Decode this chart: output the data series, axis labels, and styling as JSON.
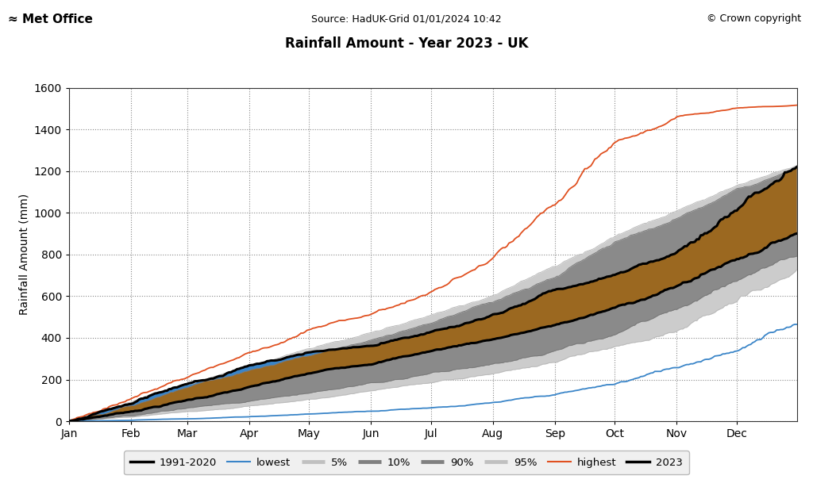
{
  "title": "Rainfall Amount - Year 2023 - UK",
  "source_text": "Source: HadUK-Grid 01/01/2024 10:42",
  "copyright_text": "© Crown copyright",
  "ylabel": "Rainfall Amount (mm)",
  "ylim": [
    0,
    1600
  ],
  "yticks": [
    0,
    200,
    400,
    600,
    800,
    1000,
    1200,
    1400,
    1600
  ],
  "months": [
    "Jan",
    "Feb",
    "Mar",
    "Apr",
    "May",
    "Jun",
    "Jul",
    "Aug",
    "Sep",
    "Oct",
    "Nov",
    "Dec"
  ],
  "month_x": [
    1,
    32,
    60,
    91,
    121,
    152,
    182,
    213,
    244,
    274,
    305,
    335,
    365
  ],
  "mean_checkpoints": [
    0,
    50,
    105,
    165,
    225,
    280,
    340,
    400,
    465,
    545,
    650,
    790,
    920
  ],
  "lowest_checkpoints": [
    0,
    5,
    12,
    22,
    35,
    50,
    68,
    90,
    120,
    165,
    240,
    340,
    450
  ],
  "highest_checkpoints": [
    0,
    110,
    220,
    340,
    450,
    525,
    630,
    780,
    1000,
    1250,
    1360,
    1415,
    1430
  ],
  "pct5_checkpoints": [
    0,
    18,
    40,
    68,
    100,
    135,
    172,
    215,
    270,
    345,
    440,
    555,
    680
  ],
  "pct95_checkpoints": [
    0,
    90,
    180,
    278,
    358,
    430,
    515,
    625,
    755,
    920,
    1060,
    1185,
    1285
  ],
  "pct10_checkpoints": [
    0,
    28,
    60,
    98,
    142,
    185,
    235,
    290,
    355,
    430,
    535,
    660,
    785
  ],
  "pct90_checkpoints": [
    0,
    75,
    150,
    235,
    305,
    375,
    455,
    550,
    660,
    805,
    925,
    1045,
    1140
  ],
  "year2023_checkpoints": [
    0,
    75,
    165,
    250,
    315,
    350,
    415,
    500,
    610,
    680,
    790,
    1010,
    1235
  ],
  "colors": {
    "mean_1991_2020": "#000000",
    "lowest": "#3a85c8",
    "highest": "#e05020",
    "year2023": "#000000",
    "fill_5_95": "#cccccc",
    "fill_10_90": "#8a8a8a",
    "fill_brown": "#9b6820",
    "fill_blue": "#3a85c8",
    "background": "#ffffff",
    "grid": "#888888"
  }
}
